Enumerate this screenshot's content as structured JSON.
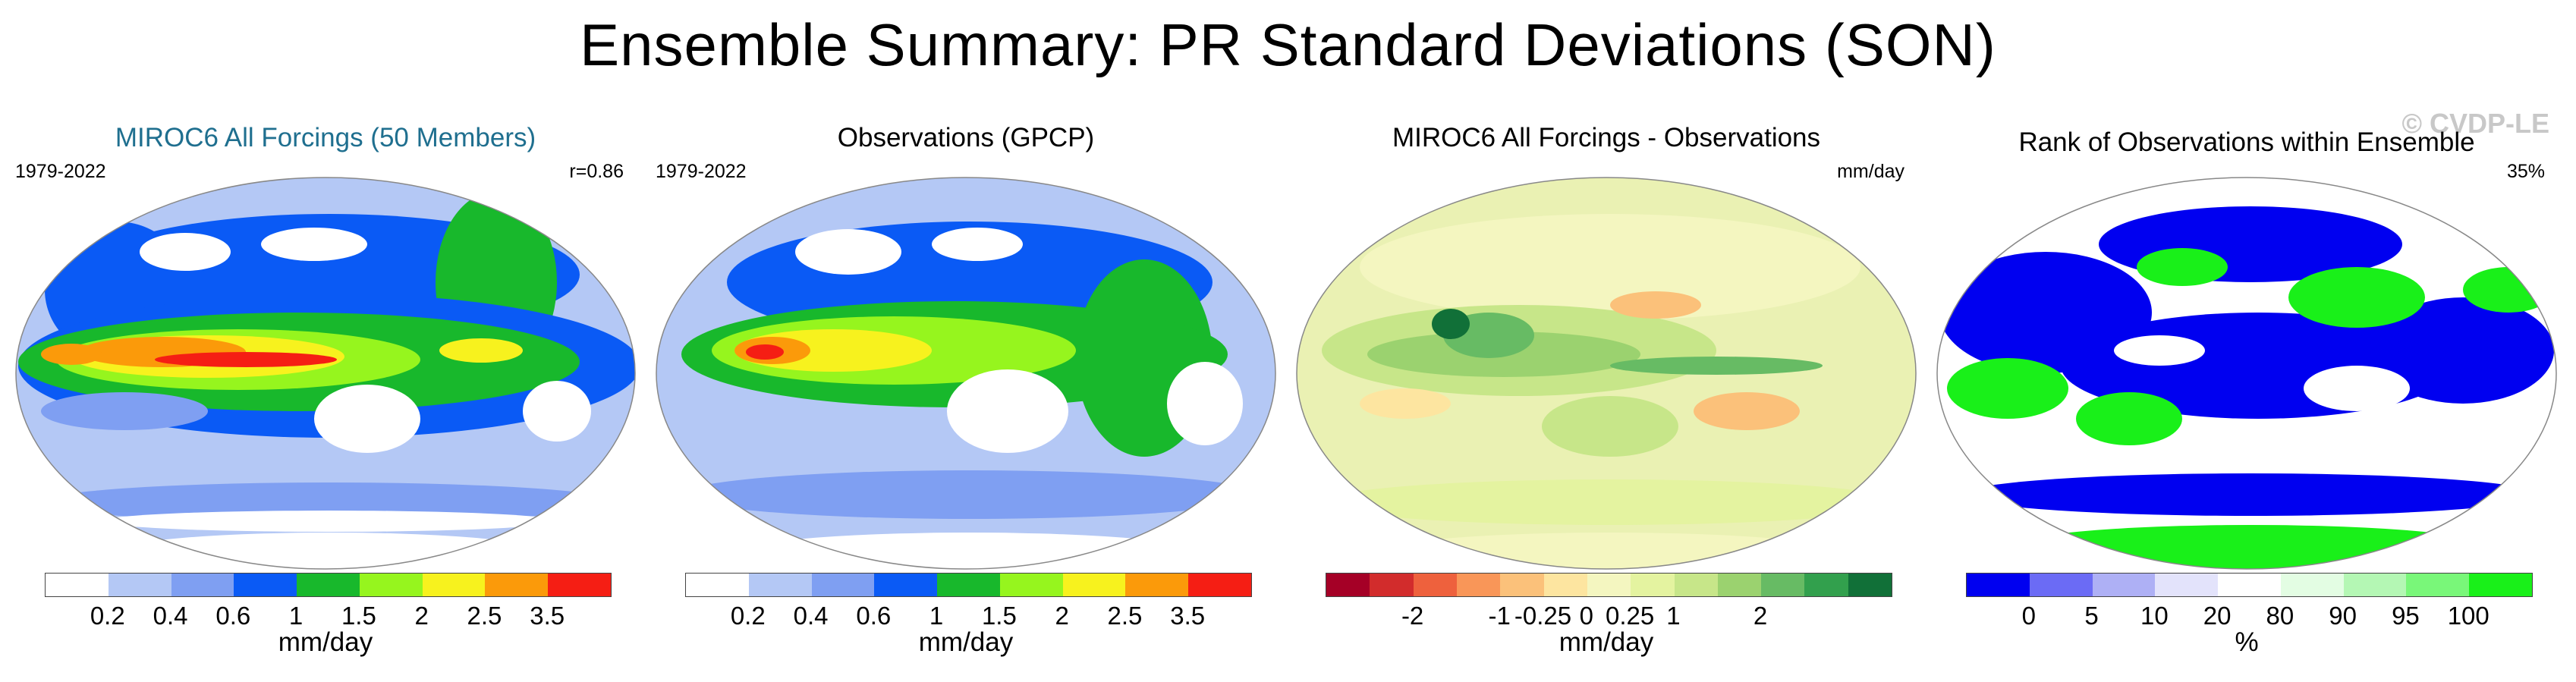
{
  "main_title": "Ensemble Summary: PR Standard Deviations (SON)",
  "watermark": "© CVDP-LE",
  "panels": [
    {
      "title": "MIROC6 All Forcings (50 Members)",
      "title_color": "#1f6f8f",
      "left_label": "1979-2022",
      "right_label": "r=0.86",
      "colorbar": {
        "colors": [
          "#ffffff",
          "#b4c8f5",
          "#7f9ff2",
          "#0a5af5",
          "#18b82c",
          "#96f51e",
          "#f7f21e",
          "#fb9a0a",
          "#f51e14"
        ],
        "ticks": [
          "0.2",
          "0.4",
          "0.6",
          "1",
          "1.5",
          "2",
          "2.5",
          "3.5"
        ],
        "unit": "mm/day"
      }
    },
    {
      "title": "Observations (GPCP)",
      "title_color": "#000000",
      "left_label": "1979-2022",
      "right_label": "",
      "colorbar": {
        "colors": [
          "#ffffff",
          "#b4c8f5",
          "#7f9ff2",
          "#0a5af5",
          "#18b82c",
          "#96f51e",
          "#f7f21e",
          "#fb9a0a",
          "#f51e14"
        ],
        "ticks": [
          "0.2",
          "0.4",
          "0.6",
          "1",
          "1.5",
          "2",
          "2.5",
          "3.5"
        ],
        "unit": "mm/day"
      }
    },
    {
      "title": "MIROC6 All Forcings - Observations",
      "title_color": "#000000",
      "left_label": "",
      "right_label": "mm/day",
      "colorbar": {
        "colors": [
          "#a50026",
          "#d22c2c",
          "#ee613d",
          "#f99658",
          "#fbc17a",
          "#fde5a0",
          "#f4f6c0",
          "#e4f3a0",
          "#c7e689",
          "#9bd26f",
          "#67bb64",
          "#32a04d",
          "#117038"
        ],
        "ticks": [
          "-2",
          "-1",
          "-0.25",
          "0",
          "0.25",
          "1",
          "2"
        ],
        "unit": "mm/day"
      }
    },
    {
      "title": "Rank of Observations within Ensemble",
      "title_color": "#000000",
      "left_label": "",
      "right_label": "35%",
      "colorbar": {
        "colors": [
          "#0000f0",
          "#6b6bf5",
          "#aeb0f5",
          "#e3e3fb",
          "#ffffff",
          "#e3fde3",
          "#b4f7b4",
          "#79f779",
          "#19f019"
        ],
        "ticks": [
          "0",
          "5",
          "10",
          "20",
          "80",
          "90",
          "95",
          "100"
        ],
        "unit": "%"
      }
    }
  ],
  "chart_data": [
    {
      "type": "heatmap",
      "title": "MIROC6 All Forcings (50 Members)",
      "period": "1979-2022",
      "pattern_correlation": 0.86,
      "projection": "global map (Robinson)",
      "variable": "PR standard deviation (SON)",
      "units": "mm/day",
      "levels": [
        0.2,
        0.4,
        0.6,
        1,
        1.5,
        2,
        2.5,
        3.5
      ]
    },
    {
      "type": "heatmap",
      "title": "Observations (GPCP)",
      "period": "1979-2022",
      "projection": "global map (Robinson)",
      "variable": "PR standard deviation (SON)",
      "units": "mm/day",
      "levels": [
        0.2,
        0.4,
        0.6,
        1,
        1.5,
        2,
        2.5,
        3.5
      ]
    },
    {
      "type": "heatmap",
      "title": "MIROC6 All Forcings - Observations",
      "projection": "global map (Robinson)",
      "units": "mm/day",
      "levels": [
        -2,
        -1,
        -0.25,
        0,
        0.25,
        1,
        2
      ]
    },
    {
      "type": "heatmap",
      "title": "Rank of Observations within Ensemble",
      "area_fraction_label": "35%",
      "projection": "global map (Robinson)",
      "units": "%",
      "levels": [
        0,
        5,
        10,
        20,
        80,
        90,
        95,
        100
      ]
    }
  ]
}
